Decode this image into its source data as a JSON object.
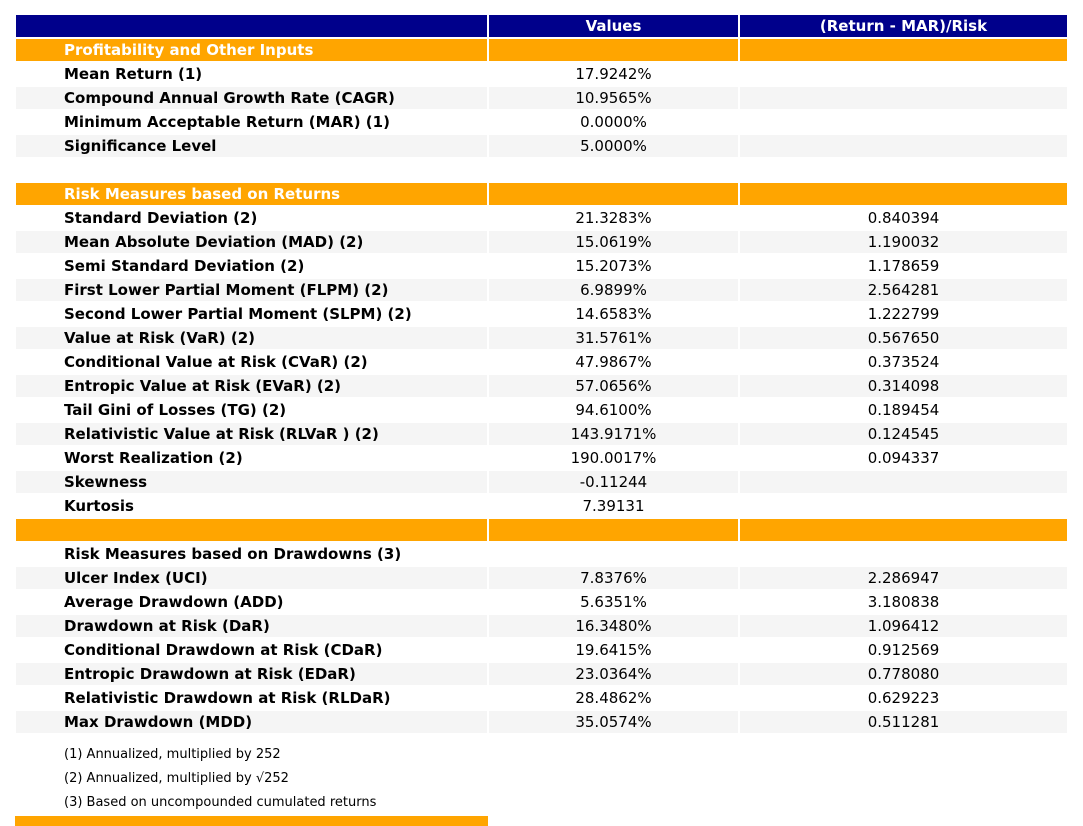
{
  "chart_data": {
    "type": "table",
    "columns": [
      "",
      "Values",
      "(Return - MAR)/Risk"
    ],
    "sections": [
      {
        "title": "Profitability and Other Inputs",
        "title_variant": "orange",
        "gap_before": false,
        "orange_separator_before": false,
        "rows": [
          [
            "Mean Return (1)",
            "17.9242%",
            ""
          ],
          [
            "Compound Annual Growth Rate (CAGR)",
            "10.9565%",
            ""
          ],
          [
            "Minimum Acceptable Return (MAR) (1)",
            "0.0000%",
            ""
          ],
          [
            "Significance Level",
            "5.0000%",
            ""
          ]
        ]
      },
      {
        "title": "Risk Measures based on Returns",
        "title_variant": "orange",
        "gap_before": true,
        "orange_separator_before": false,
        "rows": [
          [
            "Standard Deviation (2)",
            "21.3283%",
            "0.840394"
          ],
          [
            "Mean Absolute Deviation (MAD) (2)",
            "15.0619%",
            "1.190032"
          ],
          [
            "Semi Standard Deviation (2)",
            "15.2073%",
            "1.178659"
          ],
          [
            "First Lower Partial Moment (FLPM) (2)",
            "6.9899%",
            "2.564281"
          ],
          [
            "Second Lower Partial Moment (SLPM) (2)",
            "14.6583%",
            "1.222799"
          ],
          [
            "Value at Risk (VaR) (2)",
            "31.5761%",
            "0.567650"
          ],
          [
            "Conditional Value at Risk (CVaR) (2)",
            "47.9867%",
            "0.373524"
          ],
          [
            "Entropic Value at Risk (EVaR) (2)",
            "57.0656%",
            "0.314098"
          ],
          [
            "Tail Gini of Losses (TG) (2)",
            "94.6100%",
            "0.189454"
          ],
          [
            "Relativistic Value at Risk (RLVaR ) (2)",
            "143.9171%",
            "0.124545"
          ],
          [
            "Worst Realization (2)",
            "190.0017%",
            "0.094337"
          ],
          [
            "Skewness",
            "-0.11244",
            ""
          ],
          [
            "Kurtosis",
            "7.39131",
            ""
          ]
        ]
      },
      {
        "title": "Risk Measures based on Drawdowns (3)",
        "title_variant": "plain",
        "gap_before": false,
        "orange_separator_before": true,
        "rows": [
          [
            "Ulcer Index (UCI)",
            "7.8376%",
            "2.286947"
          ],
          [
            "Average Drawdown (ADD)",
            "5.6351%",
            "3.180838"
          ],
          [
            "Drawdown at Risk (DaR)",
            "16.3480%",
            "1.096412"
          ],
          [
            "Conditional Drawdown at Risk (CDaR)",
            "19.6415%",
            "0.912569"
          ],
          [
            "Entropic Drawdown at Risk (EDaR)",
            "23.0364%",
            "0.778080"
          ],
          [
            "Relativistic Drawdown at Risk (RLDaR)",
            "28.4862%",
            "0.629223"
          ],
          [
            "Max Drawdown (MDD)",
            "35.0574%",
            "0.511281"
          ]
        ]
      }
    ],
    "footnotes": [
      "(1) Annualized, multiplied by 252",
      "(2) Annualized, multiplied by √252",
      "(3) Based on uncompounded cumulated returns"
    ]
  },
  "colors": {
    "header_navy": "#00008B",
    "section_orange": "#FFA500",
    "stripe_gray": "#F5F5F5",
    "header_text": "#FFFFFF",
    "body_text": "#000000"
  }
}
